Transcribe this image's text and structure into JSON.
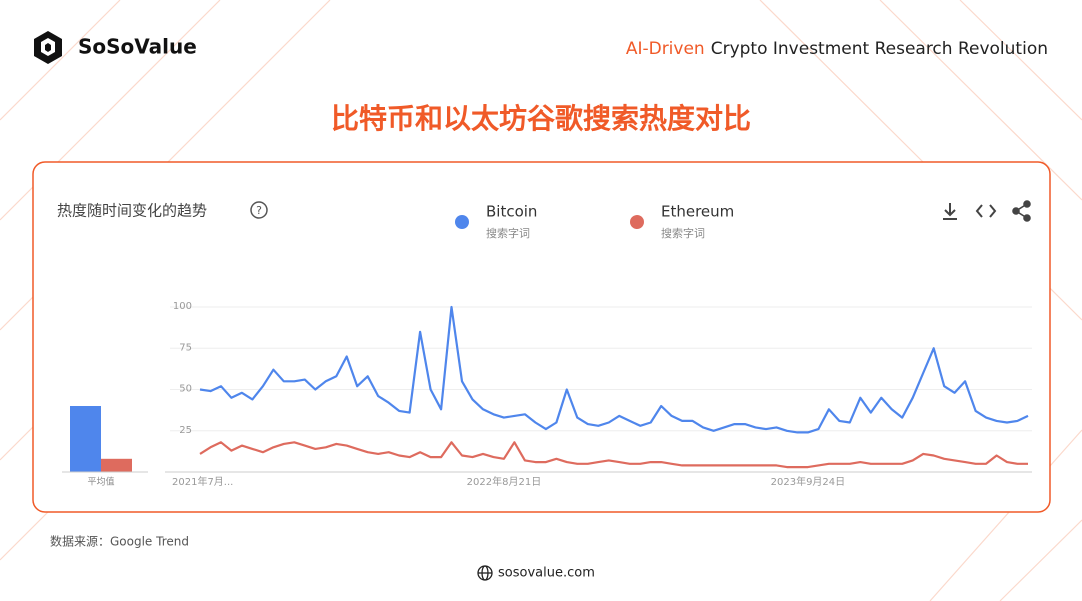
{
  "header": {
    "brand": "SoSoValue",
    "tagline_highlight": "AI-Driven",
    "tagline": "Crypto Investment Research Revolution"
  },
  "title": "比特币和以太坊谷歌搜索热度对比",
  "card_title": "热度随时间变化的趋势",
  "footer": {
    "source": "数据来源：Google Trend",
    "site": "sosovalue.com"
  },
  "chart_data": [
    {
      "type": "line",
      "legend_caption": "搜索字词",
      "categories": [
        "2021年7月...",
        null,
        null,
        null,
        null,
        null,
        null,
        null,
        null,
        null,
        null,
        null,
        null,
        null,
        null,
        null,
        null,
        null,
        null,
        null,
        null,
        null,
        null,
        null,
        null,
        null,
        null,
        null,
        null,
        "2022年8月21日",
        null,
        null,
        null,
        null,
        null,
        null,
        null,
        null,
        null,
        null,
        null,
        null,
        null,
        null,
        null,
        null,
        null,
        null,
        null,
        null,
        null,
        null,
        null,
        null,
        null,
        null,
        null,
        null,
        "2023年9月24日",
        null,
        null,
        null,
        null,
        null,
        null,
        null,
        null,
        null,
        null,
        null,
        null,
        null,
        null,
        null,
        null,
        null,
        null,
        null,
        null,
        null
      ],
      "series": [
        {
          "name": "Bitcoin",
          "color": "#4f86ec",
          "values": [
            50,
            49,
            52,
            45,
            48,
            44,
            52,
            62,
            55,
            55,
            56,
            50,
            55,
            58,
            70,
            52,
            58,
            46,
            42,
            37,
            36,
            85,
            50,
            38,
            100,
            55,
            44,
            38,
            35,
            33,
            34,
            35,
            30,
            26,
            30,
            50,
            33,
            29,
            28,
            30,
            34,
            31,
            28,
            30,
            40,
            34,
            31,
            31,
            27,
            25,
            27,
            29,
            29,
            27,
            26,
            27,
            25,
            24,
            24,
            26,
            38,
            31,
            30,
            45,
            36,
            45,
            38,
            33,
            45,
            60,
            75,
            52,
            48,
            55,
            37,
            33,
            31,
            30,
            31,
            34
          ]
        },
        {
          "name": "Ethereum",
          "color": "#de6b5e",
          "values": [
            11,
            15,
            18,
            13,
            16,
            14,
            12,
            15,
            17,
            18,
            16,
            14,
            15,
            17,
            16,
            14,
            12,
            11,
            12,
            10,
            9,
            12,
            9,
            9,
            18,
            10,
            9,
            11,
            9,
            8,
            18,
            7,
            6,
            6,
            8,
            6,
            5,
            5,
            6,
            7,
            6,
            5,
            5,
            6,
            6,
            5,
            4,
            4,
            4,
            4,
            4,
            4,
            4,
            4,
            4,
            4,
            3,
            3,
            3,
            4,
            5,
            5,
            5,
            6,
            5,
            5,
            5,
            5,
            7,
            11,
            10,
            8,
            7,
            6,
            5,
            5,
            10,
            6,
            5,
            5
          ]
        }
      ],
      "ylim": [
        0,
        100
      ],
      "yticks": [
        25,
        50,
        75,
        100
      ],
      "grid": true
    },
    {
      "type": "bar",
      "categories": [
        "平均值"
      ],
      "series": [
        {
          "color": "#4f86ec",
          "values": [
            40
          ]
        },
        {
          "color": "#de6b5e",
          "values": [
            8
          ]
        }
      ],
      "ylim": [
        0,
        100
      ]
    }
  ]
}
